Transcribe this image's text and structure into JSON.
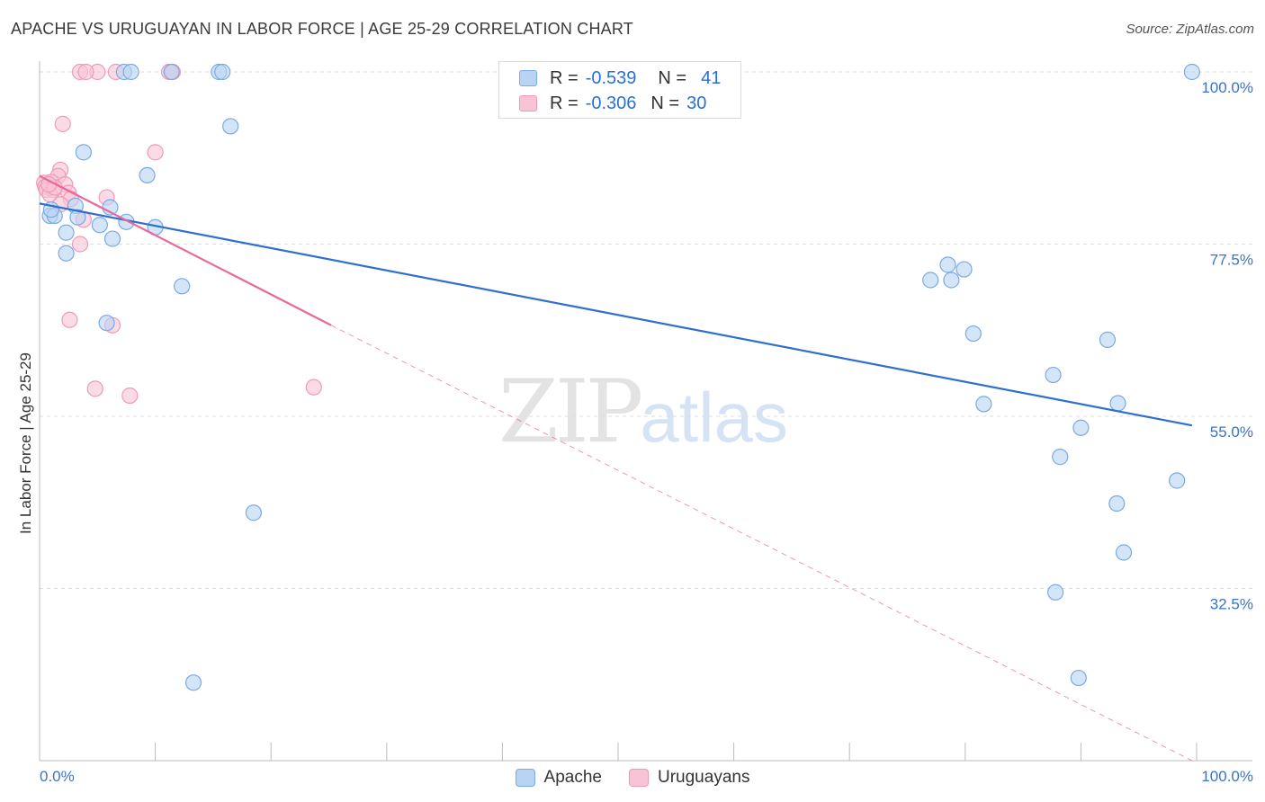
{
  "title": "APACHE VS URUGUAYAN IN LABOR FORCE | AGE 25-29 CORRELATION CHART",
  "source": "Source: ZipAtlas.com",
  "watermark": {
    "zip": "ZIP",
    "atlas": "atlas"
  },
  "legend": {
    "apache": {
      "r_label": "R =",
      "r_value": "-0.539",
      "n_label": "N =",
      "n_value": "41"
    },
    "uruguayans": {
      "r_label": "R =",
      "r_value": "-0.306",
      "n_label": "N =",
      "n_value": "30"
    }
  },
  "bottom_legend": {
    "apache": "Apache",
    "uruguayans": "Uruguayans"
  },
  "colors": {
    "apache_fill": "#b9d3f3",
    "apache_stroke": "#7aaae4",
    "apache_line": "#2f6fce",
    "uru_fill": "#f8c4d5",
    "uru_stroke": "#f09ab8",
    "uru_line": "#e8689a",
    "grid": "#dddddd",
    "axis_label": "#3b73c4"
  },
  "chart_data": {
    "type": "scatter",
    "title": "APACHE VS URUGUAYAN IN LABOR FORCE | AGE 25-29 CORRELATION CHART",
    "xlabel": "",
    "ylabel": "In Labor Force | Age 25-29",
    "xlim": [
      0,
      100
    ],
    "ylim": [
      10,
      102
    ],
    "x_tick_labels": [
      "0.0%",
      "100.0%"
    ],
    "y_ticks": [
      100,
      77.5,
      55,
      32.5
    ],
    "y_tick_labels": [
      "100.0%",
      "77.5%",
      "55.0%",
      "32.5%"
    ],
    "series": [
      {
        "name": "Apache",
        "points": [
          [
            7.3,
            100
          ],
          [
            7.9,
            100
          ],
          [
            11.4,
            100
          ],
          [
            15.5,
            100
          ],
          [
            15.8,
            100
          ],
          [
            99.6,
            100
          ],
          [
            16.5,
            92.9
          ],
          [
            3.8,
            89.5
          ],
          [
            3.1,
            82.5
          ],
          [
            6.1,
            82.3
          ],
          [
            0.9,
            81.2
          ],
          [
            1.3,
            81.2
          ],
          [
            3.3,
            81.0
          ],
          [
            7.5,
            80.4
          ],
          [
            5.2,
            80.0
          ],
          [
            10.0,
            79.7
          ],
          [
            2.3,
            79.0
          ],
          [
            6.3,
            78.2
          ],
          [
            2.3,
            76.3
          ],
          [
            12.3,
            72.0
          ],
          [
            78.5,
            74.8
          ],
          [
            79.9,
            74.2
          ],
          [
            77.0,
            72.8
          ],
          [
            78.8,
            72.8
          ],
          [
            5.8,
            67.2
          ],
          [
            80.7,
            65.8
          ],
          [
            92.3,
            65.0
          ],
          [
            87.6,
            60.4
          ],
          [
            81.6,
            56.6
          ],
          [
            93.2,
            56.7
          ],
          [
            90.0,
            53.5
          ],
          [
            88.2,
            49.7
          ],
          [
            98.3,
            46.6
          ],
          [
            93.1,
            43.6
          ],
          [
            18.5,
            42.4
          ],
          [
            93.7,
            37.2
          ],
          [
            87.8,
            32.0
          ],
          [
            89.8,
            20.8
          ],
          [
            13.3,
            20.2
          ],
          [
            9.3,
            86.5
          ],
          [
            1.0,
            82.0
          ]
        ]
      },
      {
        "name": "Uruguayans",
        "points": [
          [
            5.0,
            100
          ],
          [
            3.5,
            100
          ],
          [
            4.0,
            100
          ],
          [
            6.6,
            100
          ],
          [
            11.2,
            100
          ],
          [
            11.5,
            100
          ],
          [
            2.0,
            93.2
          ],
          [
            10.0,
            89.5
          ],
          [
            1.8,
            87.2
          ],
          [
            1.6,
            86.4
          ],
          [
            0.4,
            85.5
          ],
          [
            1.0,
            85.6
          ],
          [
            2.2,
            85.3
          ],
          [
            0.5,
            85.0
          ],
          [
            0.6,
            84.6
          ],
          [
            1.2,
            84.6
          ],
          [
            2.5,
            84.2
          ],
          [
            0.9,
            84.0
          ],
          [
            5.8,
            83.6
          ],
          [
            2.7,
            83.4
          ],
          [
            1.8,
            82.7
          ],
          [
            3.8,
            80.7
          ],
          [
            3.5,
            77.5
          ],
          [
            1.3,
            84.9
          ],
          [
            2.6,
            67.6
          ],
          [
            6.3,
            66.9
          ],
          [
            23.7,
            58.8
          ],
          [
            4.8,
            58.6
          ],
          [
            7.8,
            57.7
          ],
          [
            0.8,
            85.3
          ]
        ]
      }
    ],
    "trendlines": [
      {
        "series": "Apache",
        "x": [
          0,
          99.6
        ],
        "y": [
          82.8,
          53.8
        ],
        "style": "solid"
      },
      {
        "series": "Uruguayans",
        "x": [
          0,
          25.2
        ],
        "y": [
          86.4,
          66.9
        ],
        "style": "solid"
      },
      {
        "series": "Uruguayans",
        "x": [
          25.2,
          99.6
        ],
        "y": [
          66.9,
          10.0
        ],
        "style": "dashed"
      }
    ]
  }
}
